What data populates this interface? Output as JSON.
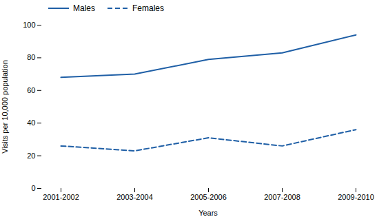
{
  "chart_data": {
    "type": "line",
    "xlabel": "Years",
    "ylabel": "Visits per 10,000 population",
    "categories": [
      "2001-2002",
      "2003-2004",
      "2005-2006",
      "2007-2008",
      "2009-2010"
    ],
    "series": [
      {
        "name": "Males",
        "color": "#1f5fa6",
        "line_style": "solid",
        "values": [
          68,
          70,
          79,
          83,
          94
        ]
      },
      {
        "name": "Females",
        "color": "#1f5fa6",
        "line_style": "dashed",
        "values": [
          26,
          23,
          31,
          26,
          36
        ]
      }
    ],
    "ylim": [
      0,
      100
    ],
    "yticks": [
      0,
      20,
      40,
      60,
      80,
      100
    ],
    "grid": false,
    "legend": "upper left"
  }
}
